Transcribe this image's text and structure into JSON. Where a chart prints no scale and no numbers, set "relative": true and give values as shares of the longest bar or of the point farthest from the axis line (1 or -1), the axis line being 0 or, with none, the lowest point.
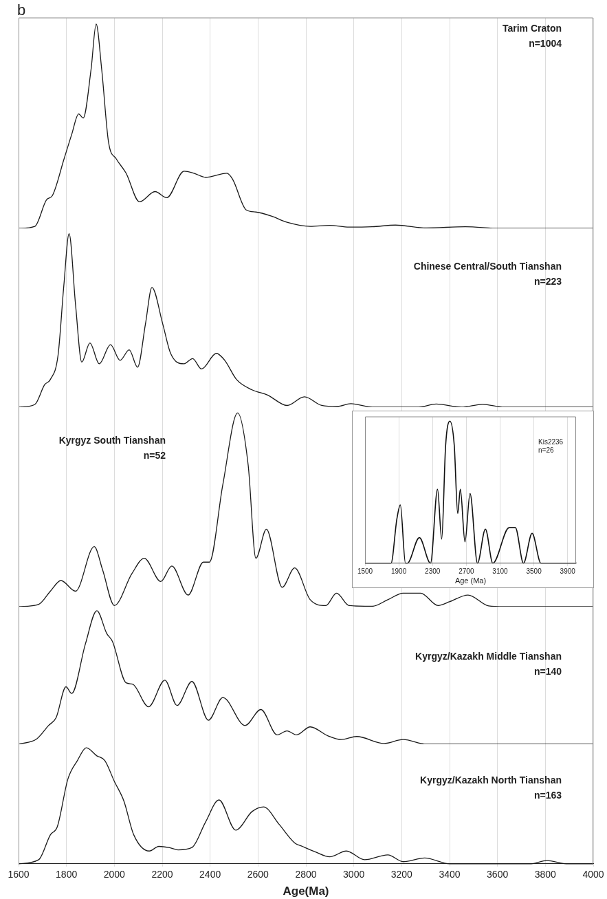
{
  "chart_data": [
    {
      "type": "line",
      "title": "Tarim Craton",
      "subtitle": "n=1004",
      "annotations": [
        "b"
      ],
      "relative": true,
      "color": "#1a1a1a",
      "grid": "x",
      "tick_labels": false,
      "xlim": [
        1600,
        4000
      ],
      "xticks": [
        1600,
        1800,
        2000,
        2200,
        2400,
        2600,
        2800,
        3000,
        3200,
        3400,
        3600,
        3800,
        4000
      ],
      "x": [
        1600,
        1668,
        1717,
        1741,
        1790,
        1822,
        1851,
        1870,
        1903,
        1924,
        1947,
        1976,
        2008,
        2049,
        2105,
        2170,
        2219,
        2291,
        2332,
        2381,
        2470,
        2494,
        2551,
        2591,
        2656,
        2721,
        2818,
        2899,
        2980,
        3077,
        3174,
        3304,
        3466,
        3611,
        4000
      ],
      "values": [
        0,
        0.01,
        0.14,
        0.16,
        0.34,
        0.46,
        0.56,
        0.54,
        0.78,
        1,
        0.78,
        0.42,
        0.34,
        0.27,
        0.13,
        0.18,
        0.15,
        0.28,
        0.27,
        0.25,
        0.27,
        0.24,
        0.09,
        0.08,
        0.06,
        0.03,
        0.01,
        0.015,
        0.006,
        0.008,
        0.016,
        0.002,
        0.008,
        0,
        0
      ]
    },
    {
      "type": "line",
      "title": "Chinese Central/South Tianshan",
      "subtitle": "n=223",
      "relative": true,
      "color": "#1a1a1a",
      "grid": "x",
      "tick_labels": false,
      "xlim": [
        1600,
        4000
      ],
      "xticks": [
        1600,
        1800,
        2000,
        2200,
        2400,
        2600,
        2800,
        3000,
        3200,
        3400,
        3600,
        3800,
        4000
      ],
      "x": [
        1600,
        1668,
        1709,
        1733,
        1765,
        1789,
        1811,
        1838,
        1864,
        1898,
        1937,
        1984,
        2024,
        2062,
        2097,
        2130,
        2157,
        2202,
        2235,
        2291,
        2327,
        2364,
        2426,
        2461,
        2510,
        2575,
        2640,
        2721,
        2794,
        2866,
        2931,
        2988,
        3077,
        3271,
        3344,
        3449,
        3538,
        3628,
        4000
      ],
      "values": [
        0,
        0.016,
        0.13,
        0.16,
        0.3,
        0.7,
        1,
        0.59,
        0.26,
        0.37,
        0.25,
        0.36,
        0.27,
        0.33,
        0.23,
        0.48,
        0.69,
        0.48,
        0.31,
        0.25,
        0.28,
        0.22,
        0.31,
        0.27,
        0.16,
        0.1,
        0.07,
        0.01,
        0.06,
        0.01,
        0.004,
        0.02,
        0,
        0,
        0.018,
        0,
        0.016,
        0,
        0
      ]
    },
    {
      "type": "line",
      "title": "Kyrgyz South Tianshan",
      "subtitle": "n=52",
      "relative": true,
      "color": "#1a1a1a",
      "grid": "x",
      "tick_labels": false,
      "xlim": [
        1600,
        4000
      ],
      "xticks": [
        1600,
        1800,
        2000,
        2200,
        2400,
        2600,
        2800,
        3000,
        3200,
        3400,
        3600,
        3800,
        4000
      ],
      "x": [
        1600,
        1684,
        1733,
        1777,
        1838,
        1916,
        1951,
        2000,
        2073,
        2125,
        2194,
        2240,
        2308,
        2372,
        2397,
        2453,
        2515,
        2559,
        2591,
        2635,
        2701,
        2753,
        2818,
        2883,
        2928,
        2980,
        3077,
        3142,
        3206,
        3279,
        3352,
        3401,
        3477,
        3563,
        3628,
        4000
      ],
      "values": [
        0,
        0.012,
        0.08,
        0.135,
        0.08,
        0.31,
        0.19,
        0.006,
        0.17,
        0.25,
        0.13,
        0.21,
        0.06,
        0.23,
        0.23,
        0.63,
        1,
        0.73,
        0.25,
        0.4,
        0.1,
        0.2,
        0.036,
        0.006,
        0.07,
        0.006,
        0.002,
        0.036,
        0.07,
        0.07,
        0.006,
        0.026,
        0.06,
        0.004,
        0,
        0
      ]
    },
    {
      "type": "line",
      "title": "Kyrgyz/Kazakh Middle Tianshan",
      "subtitle": "n=140",
      "relative": true,
      "color": "#1a1a1a",
      "grid": "x",
      "tick_labels": false,
      "xlim": [
        1600,
        4000
      ],
      "xticks": [
        1600,
        1800,
        2000,
        2200,
        2400,
        2600,
        2800,
        3000,
        3200,
        3400,
        3600,
        3800,
        4000
      ],
      "x": [
        1600,
        1676,
        1725,
        1757,
        1798,
        1822,
        1879,
        1927,
        1968,
        1992,
        2049,
        2076,
        2143,
        2211,
        2262,
        2324,
        2393,
        2453,
        2546,
        2612,
        2680,
        2721,
        2761,
        2818,
        2891,
        2948,
        3012,
        3126,
        3206,
        3304,
        4000
      ],
      "values": [
        0,
        0.04,
        0.14,
        0.2,
        0.43,
        0.38,
        0.75,
        1,
        0.83,
        0.77,
        0.46,
        0.45,
        0.28,
        0.48,
        0.29,
        0.47,
        0.18,
        0.35,
        0.14,
        0.26,
        0.07,
        0.1,
        0.07,
        0.13,
        0.064,
        0.035,
        0.058,
        0.006,
        0.035,
        0,
        0
      ]
    },
    {
      "type": "line",
      "title": "Kyrgyz/Kazakh North Tianshan",
      "subtitle": "n=163",
      "xlabel": "Age(Ma)",
      "relative": true,
      "color": "#1a1a1a",
      "grid": "x",
      "tick_labels": "x",
      "xlim": [
        1600,
        4000
      ],
      "xticks": [
        1600,
        1800,
        2000,
        2200,
        2400,
        2600,
        2800,
        3000,
        3200,
        3400,
        3600,
        3800,
        4000
      ],
      "x": [
        1600,
        1684,
        1733,
        1762,
        1806,
        1846,
        1883,
        1927,
        1960,
        2000,
        2040,
        2081,
        2146,
        2186,
        2227,
        2267,
        2324,
        2381,
        2437,
        2507,
        2575,
        2623,
        2688,
        2753,
        2785,
        2842,
        2899,
        2969,
        3045,
        3142,
        3206,
        3296,
        3401,
        3741,
        3806,
        3887,
        4000
      ],
      "values": [
        0,
        0.035,
        0.25,
        0.32,
        0.73,
        0.89,
        1,
        0.93,
        0.89,
        0.71,
        0.54,
        0.25,
        0.11,
        0.15,
        0.14,
        0.12,
        0.14,
        0.36,
        0.55,
        0.29,
        0.45,
        0.49,
        0.34,
        0.18,
        0.15,
        0.1,
        0.06,
        0.11,
        0.035,
        0.077,
        0.018,
        0.05,
        0,
        0,
        0.028,
        0,
        0
      ]
    },
    {
      "type": "line",
      "title": "Kis2236",
      "subtitle": "n=26",
      "xlabel": "Age (Ma)",
      "relative": true,
      "color": "#111111",
      "grid": "x",
      "tick_labels": "x",
      "xlim": [
        1500,
        4000
      ],
      "xticks": [
        1500,
        1900,
        2300,
        2700,
        3100,
        3500,
        3900
      ],
      "x": [
        1500,
        1808,
        1877,
        1918,
        1979,
        2001,
        2144,
        2276,
        2359,
        2408,
        2455,
        2505,
        2557,
        2598,
        2629,
        2684,
        2744,
        2832,
        2926,
        3014,
        3207,
        3281,
        3377,
        3479,
        3584,
        4000
      ],
      "values": [
        0,
        0,
        0.31,
        0.41,
        0,
        0,
        0.18,
        0,
        0.52,
        0.17,
        0.83,
        1,
        0.83,
        0.35,
        0.52,
        0.15,
        0.49,
        0,
        0.24,
        0,
        0.25,
        0.25,
        0,
        0.21,
        0,
        0
      ]
    }
  ]
}
